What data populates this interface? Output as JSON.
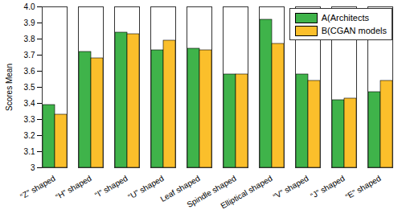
{
  "chart_data": {
    "type": "bar",
    "y_label": "Scores Mean",
    "categories": [
      "“Z” shaped",
      "“H” shaped",
      "“I” shaped",
      "“U” shaped",
      "Leaf shaped",
      "Spindle shaped",
      "Elliptical shaped",
      "“V” shaped",
      "“J” shaped",
      "“E” shaped"
    ],
    "series": [
      {
        "name": "A(Architects",
        "color": "#3fb34a",
        "values": [
          3.39,
          3.72,
          3.84,
          3.73,
          3.74,
          3.58,
          3.92,
          3.58,
          3.42,
          3.47
        ]
      },
      {
        "name": "B(CGAN models",
        "color": "#fbbf2b",
        "values": [
          3.33,
          3.68,
          3.83,
          3.79,
          3.73,
          3.58,
          3.77,
          3.54,
          3.43,
          3.54
        ]
      }
    ],
    "ylim": [
      3,
      4
    ],
    "yticks": [
      3,
      3.1,
      3.2,
      3.3,
      3.4,
      3.5,
      3.6,
      3.7,
      3.8,
      3.9,
      {
        "value": 4,
        "label": "4.0"
      }
    ],
    "grid": false,
    "legend": "upper right"
  }
}
